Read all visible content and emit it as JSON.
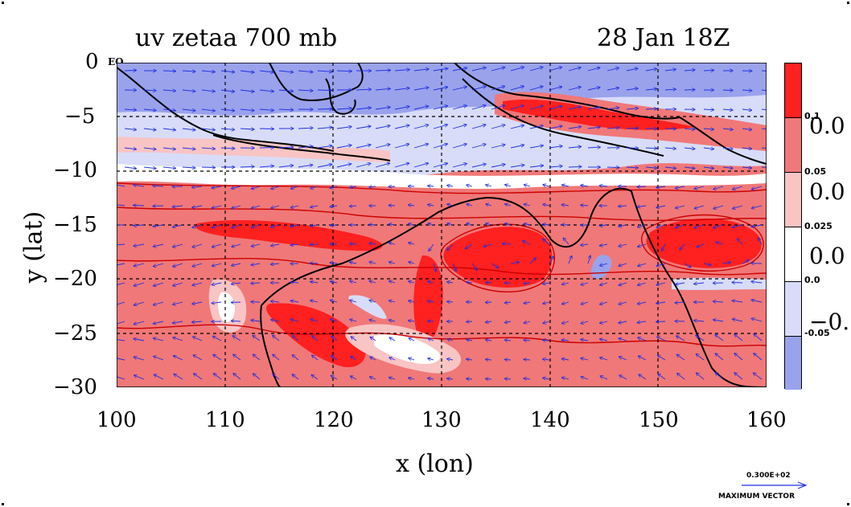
{
  "title_left": "uv zetaa 700 mb",
  "title_right": "28 Jan 18Z",
  "x_axis_title": "x (lon)",
  "y_axis_title": "y (lat)",
  "x_ticks": [
    "100",
    "110",
    "120",
    "130",
    "140",
    "150",
    "160"
  ],
  "y_ticks": [
    "0",
    "−5",
    "−10",
    "−15",
    "−20",
    "−25",
    "−30"
  ],
  "eq_label": "EQ",
  "colorbar": {
    "levels": [
      "0.1",
      "0.05",
      "0.025",
      "0.0",
      "-0.05"
    ],
    "big_labels": [
      "0.0",
      "0.0",
      "0.0",
      "−0."
    ],
    "colors": [
      "#ff2020",
      "#f07878",
      "#f8c4c4",
      "#ffffff",
      "#d8dcf8",
      "#9aa2ec"
    ]
  },
  "max_vector": {
    "value": "0.300E+02",
    "label": "MAXIMUM VECTOR"
  },
  "map": {
    "lon_range": [
      100,
      160
    ],
    "lat_range": [
      -30,
      0
    ],
    "colors": {
      "strong_positive": "#ff2020",
      "positive": "#f07878",
      "weak_positive": "#f8c4c4",
      "near_zero": "#ffffff",
      "weak_negative": "#d8dcf8",
      "negative": "#9aa2ec",
      "vectors": "#1f2fe0",
      "contour": "#cc0000",
      "coast": "#000000"
    }
  }
}
